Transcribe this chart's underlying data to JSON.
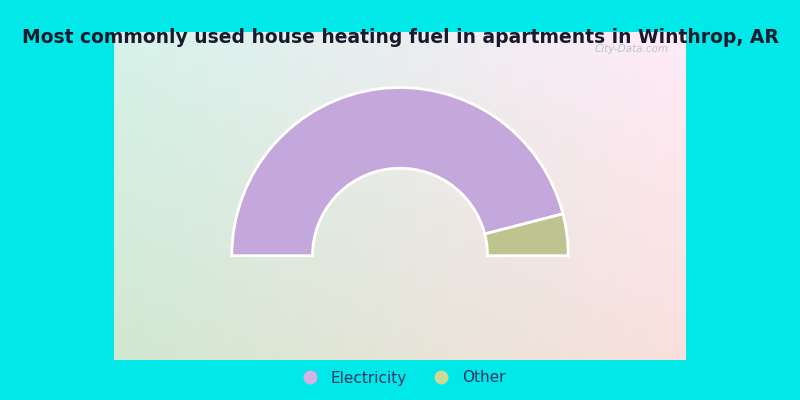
{
  "title": "Most commonly used house heating fuel in apartments in Winthrop, AR",
  "slices": [
    {
      "label": "Electricity",
      "value": 92,
      "color": "#c4a8dc"
    },
    {
      "label": "Other",
      "value": 8,
      "color": "#bdc490"
    }
  ],
  "legend_marker_colors": [
    "#d8b0e8",
    "#d0d898"
  ],
  "bg_cyan": "#00e8e8",
  "title_fontsize": 13.5,
  "title_color": "#1a1a2e",
  "watermark": "City-Data.com",
  "outer_r": 1.0,
  "inner_r": 0.52,
  "total_degrees": 180
}
